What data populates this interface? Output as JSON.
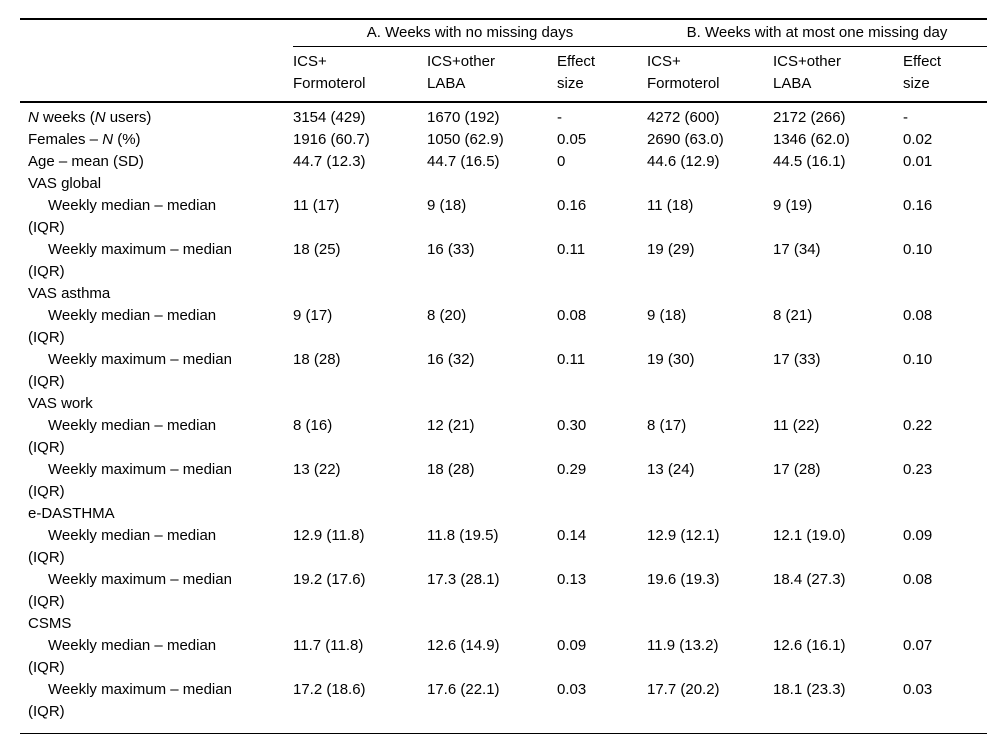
{
  "table": {
    "group_headers": [
      {
        "label": "A. Weeks with no missing days"
      },
      {
        "label": "B. Weeks with at most one missing day"
      }
    ],
    "column_headers": [
      "ICS+\nFormoterol",
      "ICS+other\nLABA",
      "Effect\nsize",
      "ICS+\nFormoterol",
      "ICS+other\nLABA",
      "Effect\nsize"
    ],
    "rows": [
      {
        "section": false,
        "indent": false,
        "label": "<i>N</i> weeks (<i>N</i> users)",
        "values": [
          "3154 (429)",
          "1670 (192)",
          "-",
          "4272 (600)",
          "2172 (266)",
          "-"
        ]
      },
      {
        "section": false,
        "indent": false,
        "label": "Females – <i>N</i> (%)",
        "values": [
          "1916 (60.7)",
          "1050 (62.9)",
          "0.05",
          "2690 (63.0)",
          "1346 (62.0)",
          "0.02"
        ]
      },
      {
        "section": false,
        "indent": false,
        "label": "Age – mean (SD)",
        "values": [
          "44.7 (12.3)",
          "44.7 (16.5)",
          "0",
          "44.6 (12.9)",
          "44.5 (16.1)",
          "0.01"
        ]
      },
      {
        "section": true,
        "indent": false,
        "label": "VAS global",
        "values": [
          "",
          "",
          "",
          "",
          "",
          ""
        ]
      },
      {
        "section": false,
        "indent": true,
        "label": "Weekly median – median\n(IQR)",
        "values": [
          "11 (17)",
          "9 (18)",
          "0.16",
          "11 (18)",
          "9 (19)",
          "0.16"
        ]
      },
      {
        "section": false,
        "indent": true,
        "label": "Weekly maximum – median\n(IQR)",
        "values": [
          "18 (25)",
          "16 (33)",
          "0.11",
          "19 (29)",
          "17 (34)",
          "0.10"
        ]
      },
      {
        "section": true,
        "indent": false,
        "label": "VAS asthma",
        "values": [
          "",
          "",
          "",
          "",
          "",
          ""
        ]
      },
      {
        "section": false,
        "indent": true,
        "label": "Weekly median – median\n(IQR)",
        "values": [
          "9 (17)",
          "8 (20)",
          "0.08",
          "9 (18)",
          "8 (21)",
          "0.08"
        ]
      },
      {
        "section": false,
        "indent": true,
        "label": "Weekly maximum – median\n(IQR)",
        "values": [
          "18 (28)",
          "16 (32)",
          "0.11",
          "19 (30)",
          "17 (33)",
          "0.10"
        ]
      },
      {
        "section": true,
        "indent": false,
        "label": "VAS work",
        "values": [
          "",
          "",
          "",
          "",
          "",
          ""
        ]
      },
      {
        "section": false,
        "indent": true,
        "label": "Weekly median – median\n(IQR)",
        "values": [
          "8 (16)",
          "12 (21)",
          "0.30",
          "8 (17)",
          "11 (22)",
          "0.22"
        ]
      },
      {
        "section": false,
        "indent": true,
        "label": "Weekly maximum – median\n(IQR)",
        "values": [
          "13 (22)",
          "18 (28)",
          "0.29",
          "13 (24)",
          "17 (28)",
          "0.23"
        ]
      },
      {
        "section": true,
        "indent": false,
        "label": "e-DASTHMA",
        "values": [
          "",
          "",
          "",
          "",
          "",
          ""
        ]
      },
      {
        "section": false,
        "indent": true,
        "label": "Weekly median – median\n(IQR)",
        "values": [
          "12.9 (11.8)",
          "11.8 (19.5)",
          "0.14",
          "12.9 (12.1)",
          "12.1 (19.0)",
          "0.09"
        ]
      },
      {
        "section": false,
        "indent": true,
        "label": "Weekly maximum – median\n(IQR)",
        "values": [
          "19.2 (17.6)",
          "17.3 (28.1)",
          "0.13",
          "19.6 (19.3)",
          "18.4 (27.3)",
          "0.08"
        ]
      },
      {
        "section": true,
        "indent": false,
        "label": "CSMS",
        "values": [
          "",
          "",
          "",
          "",
          "",
          ""
        ]
      },
      {
        "section": false,
        "indent": true,
        "label": "Weekly median – median\n(IQR)",
        "values": [
          "11.7 (11.8)",
          "12.6 (14.9)",
          "0.09",
          "11.9 (13.2)",
          "12.6 (16.1)",
          "0.07"
        ]
      },
      {
        "section": false,
        "indent": true,
        "label": "Weekly maximum – median\n(IQR)",
        "values": [
          "17.2 (18.6)",
          "17.6 (22.1)",
          "0.03",
          "17.7 (20.2)",
          "18.1 (23.3)",
          "0.03"
        ]
      }
    ]
  }
}
